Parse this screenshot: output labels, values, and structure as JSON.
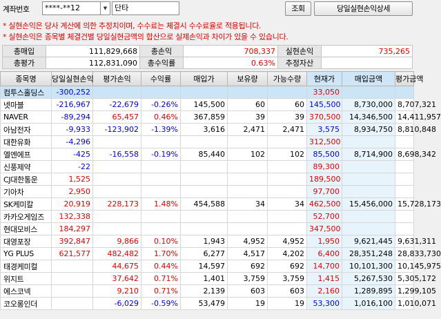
{
  "topbar": {
    "account_label": "계좌번호",
    "account_value": "****-**12",
    "type_value": "단타",
    "query_button": "조회",
    "detail_button": "당일실현손익상세"
  },
  "notes": [
    "* 실현손익은 당사 계산에 의한 추정치이며, 수수료는 체결시 수수료율로 적용됩니다.",
    "* 실현손익은 종목별 체결건별 당일실현금액의 합산으로 실제손익과 차이가 있을 수 있습니다."
  ],
  "summary": {
    "row1": [
      {
        "label": "총매입",
        "value": "111,829,668",
        "color": "black"
      },
      {
        "label": "총손익",
        "value": "708,337",
        "color": "red"
      },
      {
        "label": "실현손익",
        "value": "735,265",
        "color": "red"
      }
    ],
    "row2": [
      {
        "label": "총평가",
        "value": "112,831,090",
        "color": "black"
      },
      {
        "label": "총수익률",
        "value": "0.63%",
        "color": "red"
      },
      {
        "label": "추정자산",
        "value": "",
        "color": "black"
      }
    ]
  },
  "grid": {
    "headers": [
      "종목명",
      "당일실현손익",
      "평가손익",
      "수익률",
      "매입가",
      "보유량",
      "가능수량",
      "현재가",
      "매입금액",
      "평가금액"
    ],
    "rows": [
      {
        "name": "컴투스홀딩스",
        "realized": "-300,252",
        "eval": "",
        "rate": "",
        "buy": "",
        "hold": "",
        "avail": "",
        "price": "33,050",
        "amount": "",
        "evamt": "",
        "selected": true
      },
      {
        "name": "넷마블",
        "realized": "-216,967",
        "eval": "-22,679",
        "rate": "-0.26%",
        "buy": "145,500",
        "hold": "60",
        "avail": "60",
        "price": "145,500",
        "amount": "8,730,000",
        "evamt": "8,707,321"
      },
      {
        "name": "NAVER",
        "realized": "-89,294",
        "eval": "65,457",
        "rate": "0.46%",
        "buy": "367,859",
        "hold": "39",
        "avail": "39",
        "price": "370,500",
        "amount": "14,346,500",
        "evamt": "14,411,957"
      },
      {
        "name": "아남전자",
        "realized": "-9,933",
        "eval": "-123,902",
        "rate": "-1.39%",
        "buy": "3,616",
        "hold": "2,471",
        "avail": "2,471",
        "price": "3,575",
        "amount": "8,934,750",
        "evamt": "8,810,848"
      },
      {
        "name": "대한유화",
        "realized": "-4,296",
        "eval": "",
        "rate": "",
        "buy": "",
        "hold": "",
        "avail": "",
        "price": "312,500",
        "amount": "",
        "evamt": ""
      },
      {
        "name": "엘엔에프",
        "realized": "-425",
        "eval": "-16,558",
        "rate": "-0.19%",
        "buy": "85,440",
        "hold": "102",
        "avail": "102",
        "price": "85,500",
        "amount": "8,714,900",
        "evamt": "8,698,342"
      },
      {
        "name": "신풍제약",
        "realized": "-22",
        "eval": "",
        "rate": "",
        "buy": "",
        "hold": "",
        "avail": "",
        "price": "89,300",
        "amount": "",
        "evamt": ""
      },
      {
        "name": "CJ대한통운",
        "realized": "1,525",
        "eval": "",
        "rate": "",
        "buy": "",
        "hold": "",
        "avail": "",
        "price": "189,500",
        "amount": "",
        "evamt": ""
      },
      {
        "name": "기아차",
        "realized": "2,950",
        "eval": "",
        "rate": "",
        "buy": "",
        "hold": "",
        "avail": "",
        "price": "97,700",
        "amount": "",
        "evamt": ""
      },
      {
        "name": "SK케미칼",
        "realized": "20,919",
        "eval": "228,173",
        "rate": "1.48%",
        "buy": "454,588",
        "hold": "34",
        "avail": "34",
        "price": "462,500",
        "amount": "15,456,000",
        "evamt": "15,728,173"
      },
      {
        "name": "카카오게임즈",
        "realized": "132,338",
        "eval": "",
        "rate": "",
        "buy": "",
        "hold": "",
        "avail": "",
        "price": "52,700",
        "amount": "",
        "evamt": ""
      },
      {
        "name": "현대모비스",
        "realized": "184,297",
        "eval": "",
        "rate": "",
        "buy": "",
        "hold": "",
        "avail": "",
        "price": "347,500",
        "amount": "",
        "evamt": ""
      },
      {
        "name": "대영포장",
        "realized": "392,847",
        "eval": "9,866",
        "rate": "0.10%",
        "buy": "1,943",
        "hold": "4,952",
        "avail": "4,952",
        "price": "1,950",
        "amount": "9,621,445",
        "evamt": "9,631,311"
      },
      {
        "name": "YG PLUS",
        "realized": "621,577",
        "eval": "482,482",
        "rate": "1.70%",
        "buy": "6,277",
        "hold": "4,517",
        "avail": "4,202",
        "price": "6,400",
        "amount": "28,351,248",
        "evamt": "28,833,730"
      },
      {
        "name": "태경케미컬",
        "realized": "",
        "eval": "44,675",
        "rate": "0.44%",
        "buy": "14,597",
        "hold": "692",
        "avail": "692",
        "price": "14,700",
        "amount": "10,101,300",
        "evamt": "10,145,975"
      },
      {
        "name": "위지트",
        "realized": "",
        "eval": "37,642",
        "rate": "0.71%",
        "buy": "1,401",
        "hold": "3,759",
        "avail": "3,759",
        "price": "1,415",
        "amount": "5,267,530",
        "evamt": "5,305,172"
      },
      {
        "name": "에스코넥",
        "realized": "",
        "eval": "9,210",
        "rate": "0.71%",
        "buy": "2,139",
        "hold": "603",
        "avail": "603",
        "price": "2,160",
        "amount": "1,289,895",
        "evamt": "1,299,105"
      },
      {
        "name": "코오롱인더",
        "realized": "",
        "eval": "-6,029",
        "rate": "-0.59%",
        "buy": "53,479",
        "hold": "19",
        "avail": "19",
        "price": "53,300",
        "amount": "1,016,100",
        "evamt": "1,010,071"
      }
    ]
  }
}
